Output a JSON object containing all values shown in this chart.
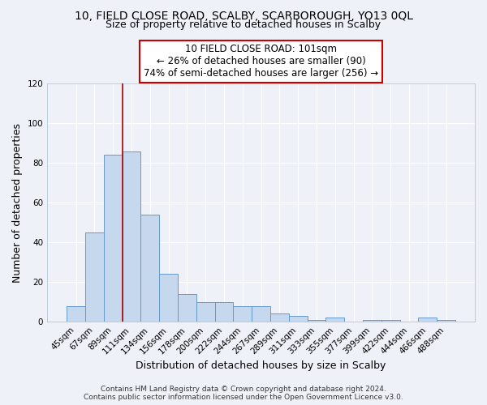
{
  "title": "10, FIELD CLOSE ROAD, SCALBY, SCARBOROUGH, YO13 0QL",
  "subtitle": "Size of property relative to detached houses in Scalby",
  "xlabel": "Distribution of detached houses by size in Scalby",
  "ylabel": "Number of detached properties",
  "bar_labels": [
    "45sqm",
    "67sqm",
    "89sqm",
    "111sqm",
    "134sqm",
    "156sqm",
    "178sqm",
    "200sqm",
    "222sqm",
    "244sqm",
    "267sqm",
    "289sqm",
    "311sqm",
    "333sqm",
    "355sqm",
    "377sqm",
    "399sqm",
    "422sqm",
    "444sqm",
    "466sqm",
    "488sqm"
  ],
  "bar_values": [
    8,
    45,
    84,
    86,
    54,
    24,
    14,
    10,
    10,
    8,
    8,
    4,
    3,
    1,
    2,
    0,
    1,
    1,
    0,
    2,
    1
  ],
  "bar_color": "#c5d8ed",
  "bar_edge_color": "#6699cc",
  "ylim": [
    0,
    120
  ],
  "yticks": [
    0,
    20,
    40,
    60,
    80,
    100,
    120
  ],
  "vline_color": "#aa0000",
  "annotation_line1": "10 FIELD CLOSE ROAD: 101sqm",
  "annotation_line2": "← 26% of detached houses are smaller (90)",
  "annotation_line3": "74% of semi-detached houses are larger (256) →",
  "annotation_box_color": "#cc0000",
  "footer_line1": "Contains HM Land Registry data © Crown copyright and database right 2024.",
  "footer_line2": "Contains public sector information licensed under the Open Government Licence v3.0.",
  "background_color": "#eef2f8",
  "plot_bg_color": "#eef2f8",
  "title_fontsize": 10,
  "subtitle_fontsize": 9,
  "axis_label_fontsize": 9,
  "tick_fontsize": 7.5,
  "footer_fontsize": 6.5
}
